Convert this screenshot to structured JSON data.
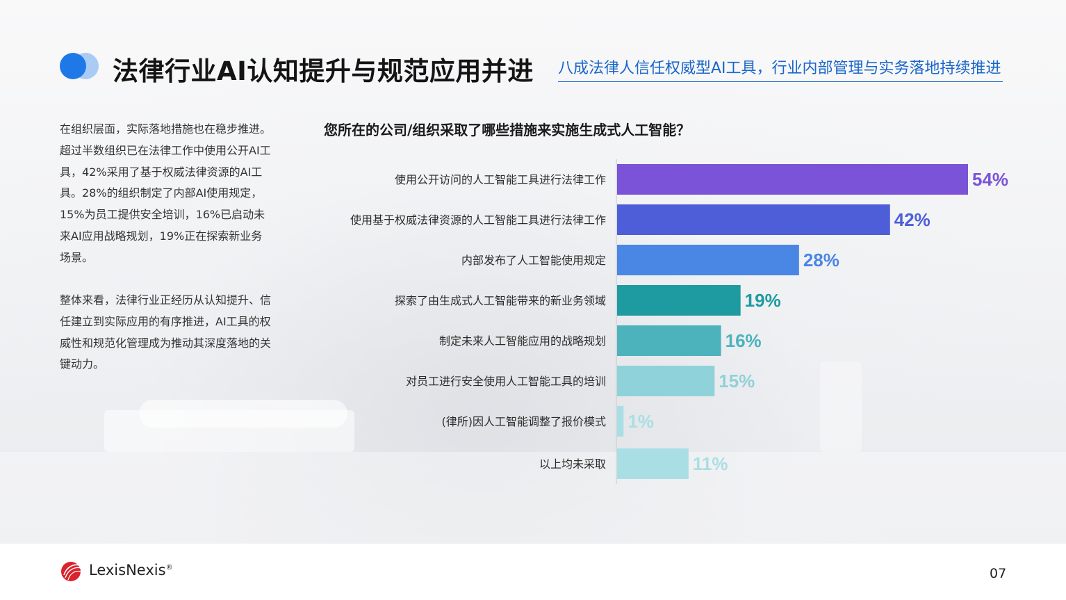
{
  "header": {
    "title": "法律行业AI认知提升与规范应用并进",
    "subtitle": "八成法律人信任权威型AI工具，行业内部管理与实务落地持续推进"
  },
  "body": {
    "paragraph1": "在组织层面，实际落地措施也在稳步推进。超过半数组织已在法律工作中使用公开AI工具，42%采用了基于权威法律资源的AI工具。28%的组织制定了内部AI使用规定，15%为员工提供安全培训，16%已启动未来AI应用战略规划，19%正在探索新业务场景。",
    "paragraph2": "整体来看，法律行业正经历从认知提升、信任建立到实际应用的有序推进，AI工具的权威性和规范化管理成为推动其深度落地的关键动力。"
  },
  "chart_data": {
    "type": "bar",
    "orientation": "horizontal",
    "title": "您所在的公司/组织采取了哪些措施来实施生成式人工智能？",
    "categories": [
      "使用公开访问的人工智能工具进行法律工作",
      "使用基于权威法律资源的人工智能工具进行法律工作",
      "内部发布了人工智能使用规定",
      "探索了由生成式人工智能带来的新业务领域",
      "制定未来人工智能应用的战略规划",
      "对员工进行安全使用人工智能工具的培训",
      "(律所)因人工智能调整了报价模式",
      "以上均未采取"
    ],
    "values": [
      54,
      42,
      28,
      19,
      16,
      15,
      1,
      11
    ],
    "value_labels": [
      "54%",
      "42%",
      "28%",
      "19%",
      "16%",
      "15%",
      "1%",
      "11%"
    ],
    "colors": [
      "#7a53d8",
      "#4e5ed9",
      "#4a86e4",
      "#1e9aa1",
      "#4cb3bd",
      "#8fd2d9",
      "#a9dfe4",
      "#a9dfe4"
    ],
    "xlim": [
      0,
      54
    ]
  },
  "footer": {
    "brand": "LexisNexis",
    "brand_mark": "®",
    "page_number": "07",
    "logo_icon": "lexisnexis-logo-icon"
  }
}
